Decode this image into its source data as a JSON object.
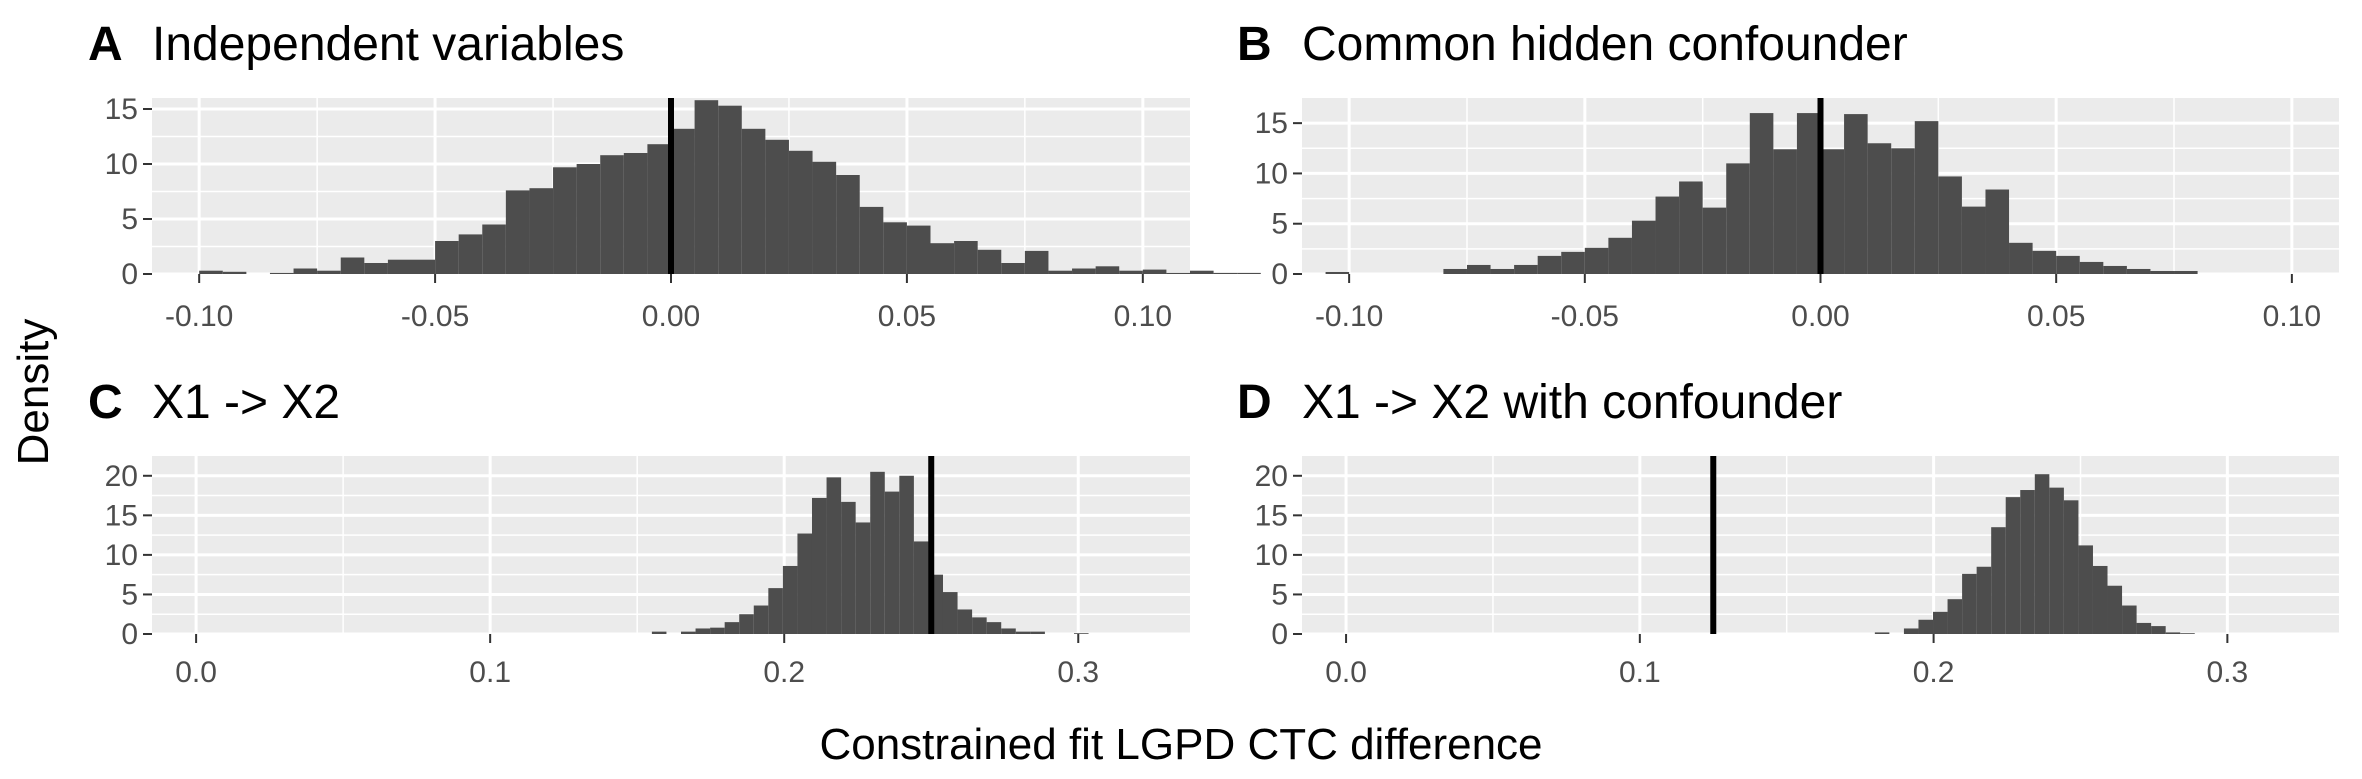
{
  "figure": {
    "ylabel": "Density",
    "xlabel": "Constrained fit LGPD CTC difference"
  },
  "colors": {
    "panel_bg": "#EBEBEB",
    "grid": "#FFFFFF",
    "bar": "#4D4D4D",
    "line": "#000000",
    "tick_text": "#4D4D4D"
  },
  "chart_data": [
    {
      "type": "bar",
      "letter": "A",
      "title": "Independent variables",
      "xlim": [
        -0.11,
        0.11
      ],
      "ylim": [
        0,
        16
      ],
      "xticks": [
        -0.1,
        -0.05,
        0.0,
        0.05,
        0.1
      ],
      "xtick_labels": [
        "-0.10",
        "-0.05",
        "0.00",
        "0.05",
        "0.10"
      ],
      "yticks": [
        0,
        5,
        10,
        15
      ],
      "ytick_labels": [
        "0",
        "5",
        "10",
        "15"
      ],
      "vline": 0.0,
      "bin_start": -0.1,
      "bin_width": 0.005,
      "values": [
        0.3,
        0.2,
        0,
        0.1,
        0.5,
        0.3,
        1.5,
        1.0,
        1.3,
        1.3,
        3.0,
        3.6,
        4.5,
        7.6,
        7.8,
        9.7,
        10.0,
        10.8,
        11.0,
        11.8,
        13.2,
        15.8,
        15.3,
        13.2,
        12.2,
        11.2,
        10.2,
        9.0,
        6.1,
        4.7,
        4.4,
        2.8,
        3.0,
        2.2,
        1.0,
        2.1,
        0.3,
        0.5,
        0.7,
        0.3,
        0.4,
        0.1,
        0.3,
        0.1,
        0.1
      ]
    },
    {
      "type": "bar",
      "letter": "B",
      "title": "Common hidden confounder",
      "xlim": [
        -0.11,
        0.11
      ],
      "ylim": [
        0,
        17.5
      ],
      "xticks": [
        -0.1,
        -0.05,
        0.0,
        0.05,
        0.1
      ],
      "xtick_labels": [
        "-0.10",
        "-0.05",
        "0.00",
        "0.05",
        "0.10"
      ],
      "yticks": [
        0,
        5,
        10,
        15
      ],
      "ytick_labels": [
        "0",
        "5",
        "10",
        "15"
      ],
      "vline": 0.0,
      "bin_start": -0.105,
      "bin_width": 0.005,
      "values": [
        0.2,
        0,
        0,
        0,
        0,
        0.5,
        0.9,
        0.5,
        0.9,
        1.8,
        2.2,
        2.6,
        3.6,
        5.3,
        7.7,
        9.2,
        6.6,
        11.0,
        16.0,
        12.4,
        16.0,
        12.4,
        15.9,
        13.0,
        12.5,
        15.2,
        9.7,
        6.7,
        8.4,
        3.1,
        2.3,
        1.8,
        1.2,
        0.8,
        0.5,
        0.3,
        0.3
      ]
    },
    {
      "type": "bar",
      "letter": "C",
      "title": "X1 -> X2",
      "xlim": [
        -0.015,
        0.338
      ],
      "ylim": [
        0,
        22.5
      ],
      "xticks": [
        0.0,
        0.1,
        0.2,
        0.3
      ],
      "xtick_labels": [
        "0.0",
        "0.1",
        "0.2",
        "0.3"
      ],
      "yticks": [
        0,
        5,
        10,
        15,
        20
      ],
      "ytick_labels": [
        "0",
        "5",
        "10",
        "15",
        "20"
      ],
      "vline": 0.25,
      "bin_start": 0.155,
      "bin_width": 0.00495,
      "values": [
        0.3,
        0,
        0.3,
        0.7,
        0.8,
        1.5,
        2.5,
        3.6,
        5.8,
        8.6,
        12.7,
        17.2,
        19.8,
        16.7,
        14.1,
        20.5,
        18.0,
        20.0,
        11.7,
        7.5,
        5.3,
        3.1,
        2.1,
        1.5,
        0.7,
        0.3,
        0.3,
        0,
        0,
        0.1
      ]
    },
    {
      "type": "bar",
      "letter": "D",
      "title": "X1 -> X2 with confounder",
      "xlim": [
        -0.015,
        0.338
      ],
      "ylim": [
        0,
        22.5
      ],
      "xticks": [
        0.0,
        0.1,
        0.2,
        0.3
      ],
      "xtick_labels": [
        "0.0",
        "0.1",
        "0.2",
        "0.3"
      ],
      "yticks": [
        0,
        5,
        10,
        15,
        20
      ],
      "ytick_labels": [
        "0",
        "5",
        "10",
        "15",
        "20"
      ],
      "vline": 0.125,
      "bin_start": 0.18,
      "bin_width": 0.00495,
      "values": [
        0.2,
        0,
        0.7,
        1.8,
        2.8,
        4.4,
        7.6,
        8.5,
        13.5,
        17.3,
        18.2,
        20.2,
        18.5,
        16.9,
        11.2,
        8.6,
        6.1,
        3.6,
        1.4,
        1.0,
        0.2,
        0.1
      ]
    }
  ]
}
